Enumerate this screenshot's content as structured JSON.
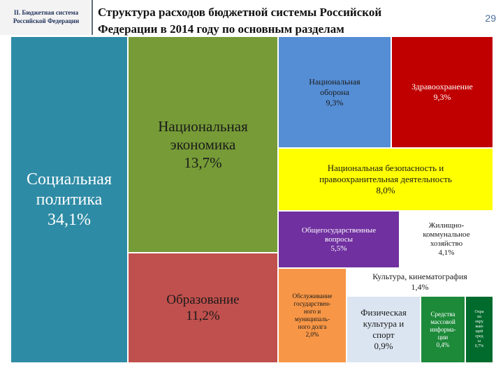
{
  "header": {
    "section_label": "II. Бюджетная система\nРоссийской Федерации",
    "title": "Структура расходов бюджетной системы Российской\nФедерации в 2014 году по основным разделам",
    "page_number": "29"
  },
  "treemap": [
    {
      "key": "social",
      "label": "Социальная\nполитика\n34,1%",
      "value": 34.1,
      "color": "#2e8ba5"
    },
    {
      "key": "economy",
      "label": "Национальная\nэкономика\n13,7%",
      "value": 13.7,
      "color": "#769b37"
    },
    {
      "key": "education",
      "label": "Образование\n11,2%",
      "value": 11.2,
      "color": "#c0504d"
    },
    {
      "key": "defense",
      "label": "Национальная\nоборона\n9,3%",
      "value": 9.3,
      "color": "#558ed5"
    },
    {
      "key": "health",
      "label": "Здравоохранение\n9,3%",
      "value": 9.3,
      "color": "#c00000"
    },
    {
      "key": "security",
      "label": "Национальная безопасность и\nправоохранительная деятельность\n8,0%",
      "value": 8.0,
      "color": "#ffff00"
    },
    {
      "key": "general",
      "label": "Общегосударственные\nвопросы\n5,5%",
      "value": 5.5,
      "color": "#7030a0"
    },
    {
      "key": "housing",
      "label": "Жилищно-\nкоммунальное\nхозяйство\n4,1%",
      "value": 4.1,
      "color": "#ffffff"
    },
    {
      "key": "culture",
      "label": "Культура, кинематография\n1,4%",
      "value": 1.4,
      "color": "#ffffff"
    },
    {
      "key": "debt",
      "label": "Обслуживание\nгосударствен-\nного и\nмуниципаль-\nного долга\n2,0%",
      "value": 2.0,
      "color": "#f79646"
    },
    {
      "key": "sport",
      "label": "Физическая\nкультура и\nспорт\n0,9%",
      "value": 0.9,
      "color": "#dbe5f1"
    },
    {
      "key": "media",
      "label": "Средства\nмассовой\nинформа-\nции\n0,4%",
      "value": 0.4,
      "color": "#1d8a3a"
    },
    {
      "key": "environment",
      "label": "Охра\nна\nокру\nжаю\nщей\nсред\nы\n0,7%",
      "value": 0.7,
      "color": "#006b2c"
    }
  ]
}
